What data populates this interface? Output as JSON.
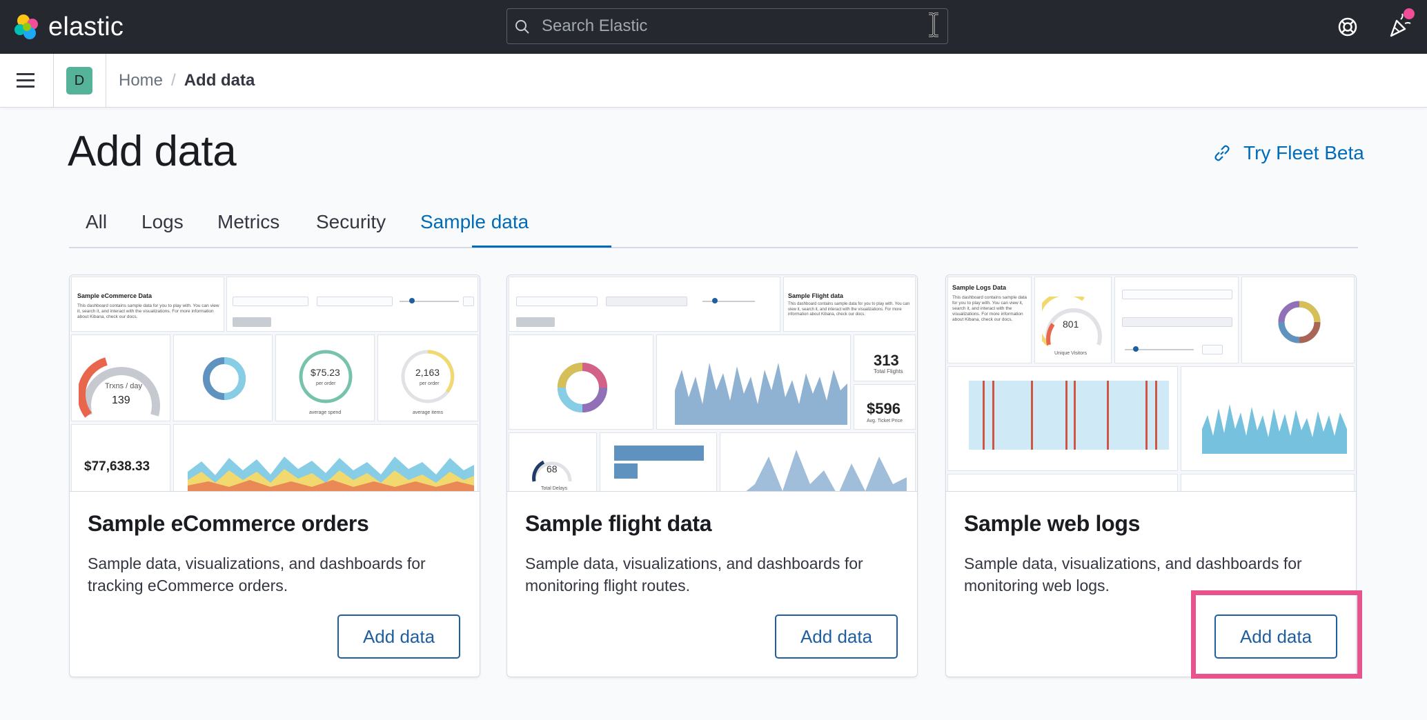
{
  "header": {
    "logo_text": "elastic",
    "search_placeholder": "Search Elastic"
  },
  "subbar": {
    "space_initial": "D",
    "breadcrumbs": [
      "Home",
      "Add data"
    ],
    "separator": "/"
  },
  "page": {
    "title": "Add data",
    "fleet_link": "Try Fleet Beta"
  },
  "tabs": [
    {
      "label": "All"
    },
    {
      "label": "Logs"
    },
    {
      "label": "Metrics"
    },
    {
      "label": "Security"
    },
    {
      "label": "Sample data"
    }
  ],
  "cards": [
    {
      "title": "Sample eCommerce orders",
      "description": "Sample data, visualizations, and dashboards for tracking eCommerce orders.",
      "button": "Add data",
      "preview": {
        "markdown_title": "Sample eCommerce Data",
        "markdown_text": "This dashboard contains sample data for you to play with. You can view it, search it, and interact with the visualizations. For more information about Kibana, check our docs.",
        "gauge_label": "Trxns / day",
        "gauge_value": "139",
        "avg_sales_value": "$75.23",
        "avg_sales_sub": "per order",
        "avg_sales_label": "average spend",
        "avg_qty_value": "2,163",
        "avg_qty_sub": "per order",
        "avg_qty_label": "average items",
        "total_revenue": "$77,638.33"
      }
    },
    {
      "title": "Sample flight data",
      "description": "Sample data, visualizations, and dashboards for monitoring flight routes.",
      "button": "Add data",
      "preview": {
        "markdown_title": "Sample Flight data",
        "markdown_text": "This dashboard contains sample data for you to play with. You can view it, search it, and interact with the visualizations. For more information about Kibana, check our docs.",
        "total_flights": "313",
        "total_flights_label": "Total Flights",
        "avg_ticket": "$596",
        "avg_ticket_label": "Avg. Ticket Price",
        "delays_value": "68",
        "delays_label": "Total Delays"
      }
    },
    {
      "title": "Sample web logs",
      "description": "Sample data, visualizations, and dashboards for monitoring web logs.",
      "button": "Add data",
      "preview": {
        "markdown_title": "Sample Logs Data",
        "markdown_text": "This dashboard contains sample data for you to play with. You can view it, search it, and interact with the visualizations. For more information about Kibana, check our docs.",
        "gauge_value": "801",
        "gauge_label": "Unique Visitors"
      }
    }
  ],
  "colors": {
    "accent": "#006bb8",
    "header_bg": "#25282f",
    "highlight": "#e8528d"
  }
}
